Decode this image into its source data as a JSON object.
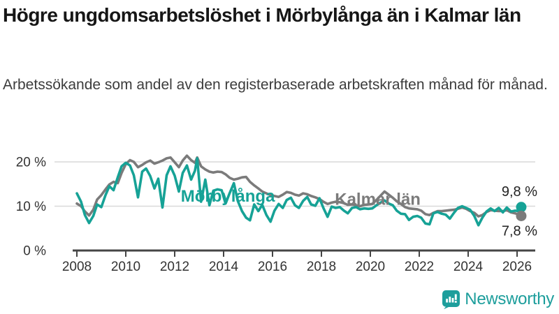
{
  "header": {
    "title": "Högre ungdomsarbetslöshet i Mörbylånga än i Kalmar län",
    "subtitle": "Arbetssökande som andel av den registerbaserade arbetskraften månad för månad."
  },
  "branding": {
    "wordmark": "Newsworthy",
    "icon": "bar-chart-speech-bubble-icon",
    "color": "#1d9e9c"
  },
  "chart_data": {
    "type": "line",
    "title": "",
    "xlabel": "",
    "ylabel": "",
    "unit": "%",
    "grid": true,
    "x_axis": {
      "tick_years": [
        2008,
        2010,
        2012,
        2014,
        2016,
        2018,
        2020,
        2022,
        2024,
        2026
      ],
      "range": [
        2007.8,
        2026.3
      ]
    },
    "y_axis": {
      "tick_labels": [
        "0 %",
        "10 %",
        "20 %"
      ],
      "tick_values": [
        0,
        10,
        20
      ],
      "range": [
        0,
        24
      ]
    },
    "x": [
      2008.0,
      2008.17,
      2008.33,
      2008.5,
      2008.67,
      2008.83,
      2009.0,
      2009.17,
      2009.33,
      2009.5,
      2009.67,
      2009.83,
      2010.0,
      2010.17,
      2010.33,
      2010.5,
      2010.67,
      2010.83,
      2011.0,
      2011.17,
      2011.33,
      2011.5,
      2011.67,
      2011.83,
      2012.0,
      2012.17,
      2012.33,
      2012.5,
      2012.67,
      2012.83,
      2012.92,
      2013.08,
      2013.25,
      2013.42,
      2013.58,
      2013.75,
      2013.92,
      2014.08,
      2014.25,
      2014.42,
      2014.58,
      2014.75,
      2014.92,
      2015.08,
      2015.25,
      2015.42,
      2015.58,
      2015.75,
      2015.92,
      2016.08,
      2016.25,
      2016.42,
      2016.58,
      2016.75,
      2016.92,
      2017.08,
      2017.25,
      2017.42,
      2017.58,
      2017.75,
      2017.92,
      2018.08,
      2018.25,
      2018.42,
      2018.58,
      2018.75,
      2018.92,
      2019.08,
      2019.25,
      2019.42,
      2019.58,
      2019.75,
      2019.92,
      2020.08,
      2020.25,
      2020.42,
      2020.58,
      2020.75,
      2020.92,
      2021.08,
      2021.25,
      2021.42,
      2021.58,
      2021.75,
      2021.92,
      2022.08,
      2022.25,
      2022.42,
      2022.58,
      2022.75,
      2022.92,
      2023.08,
      2023.25,
      2023.42,
      2023.58,
      2023.75,
      2023.92,
      2024.08,
      2024.25,
      2024.42,
      2024.58,
      2024.75,
      2024.92,
      2025.08,
      2025.25,
      2025.42,
      2025.58,
      2025.75,
      2025.92,
      2026.08,
      2026.17
    ],
    "series": [
      {
        "name": "Mörbylånga",
        "color": "#16a296",
        "end_label": "9,8 %",
        "end_value": 9.8,
        "label_pos": {
          "x": 2012.25,
          "y": 11.0
        },
        "values": [
          12.9,
          11.0,
          8.0,
          6.2,
          7.8,
          10.4,
          9.8,
          12.5,
          14.5,
          13.6,
          16.5,
          19.0,
          19.8,
          19.2,
          17.0,
          12.0,
          17.8,
          18.5,
          16.8,
          14.0,
          16.2,
          9.7,
          17.0,
          19.0,
          16.9,
          13.3,
          17.5,
          19.2,
          16.0,
          18.0,
          20.8,
          11.0,
          16.0,
          10.2,
          13.5,
          13.8,
          13.6,
          10.6,
          13.0,
          15.2,
          11.2,
          8.9,
          7.4,
          6.8,
          10.4,
          8.9,
          10.3,
          8.0,
          6.5,
          9.0,
          10.5,
          9.6,
          11.4,
          11.9,
          10.2,
          9.6,
          11.2,
          12.1,
          10.4,
          10.1,
          11.8,
          9.6,
          7.6,
          9.9,
          9.6,
          9.8,
          9.0,
          8.4,
          9.6,
          9.8,
          9.3,
          9.5,
          9.4,
          9.5,
          10.2,
          10.8,
          11.3,
          10.6,
          10.2,
          9.0,
          8.3,
          8.2,
          6.9,
          7.6,
          7.8,
          7.4,
          6.1,
          5.9,
          8.4,
          8.7,
          8.3,
          8.1,
          7.2,
          8.5,
          9.6,
          10.0,
          9.6,
          9.2,
          7.8,
          5.7,
          7.4,
          8.8,
          9.5,
          8.9,
          9.6,
          8.6,
          9.7,
          8.8,
          9.0,
          8.9,
          9.8
        ]
      },
      {
        "name": "Kalmar län",
        "color": "#7b7b7b",
        "end_label": "7,8 %",
        "end_value": 7.8,
        "label_pos": {
          "x": 2018.55,
          "y": 10.3
        },
        "values": [
          10.6,
          10.0,
          8.8,
          7.9,
          9.2,
          11.5,
          12.5,
          13.8,
          14.9,
          15.5,
          15.2,
          17.5,
          19.5,
          20.4,
          20.0,
          18.8,
          19.3,
          19.9,
          20.3,
          19.6,
          19.9,
          20.3,
          20.8,
          21.0,
          19.9,
          18.8,
          20.3,
          21.4,
          20.4,
          19.8,
          21.0,
          19.0,
          18.3,
          17.8,
          17.6,
          17.8,
          17.7,
          17.2,
          16.4,
          16.0,
          16.2,
          16.5,
          16.6,
          15.5,
          14.7,
          14.0,
          13.3,
          12.9,
          12.5,
          12.3,
          12.1,
          12.6,
          13.2,
          13.0,
          12.6,
          12.4,
          12.9,
          12.7,
          12.3,
          12.0,
          11.6,
          11.0,
          10.5,
          10.8,
          11.0,
          10.9,
          10.7,
          10.3,
          10.4,
          10.2,
          10.0,
          10.3,
          10.4,
          10.5,
          11.4,
          12.4,
          13.3,
          12.6,
          11.9,
          11.1,
          10.5,
          9.8,
          9.5,
          9.4,
          9.3,
          9.0,
          8.2,
          8.0,
          8.5,
          8.9,
          8.9,
          9.0,
          9.1,
          9.2,
          9.4,
          9.7,
          9.4,
          8.9,
          8.5,
          7.7,
          8.0,
          8.7,
          9.1,
          9.0,
          8.9,
          8.9,
          9.1,
          8.6,
          8.4,
          8.1,
          7.8
        ]
      }
    ]
  }
}
